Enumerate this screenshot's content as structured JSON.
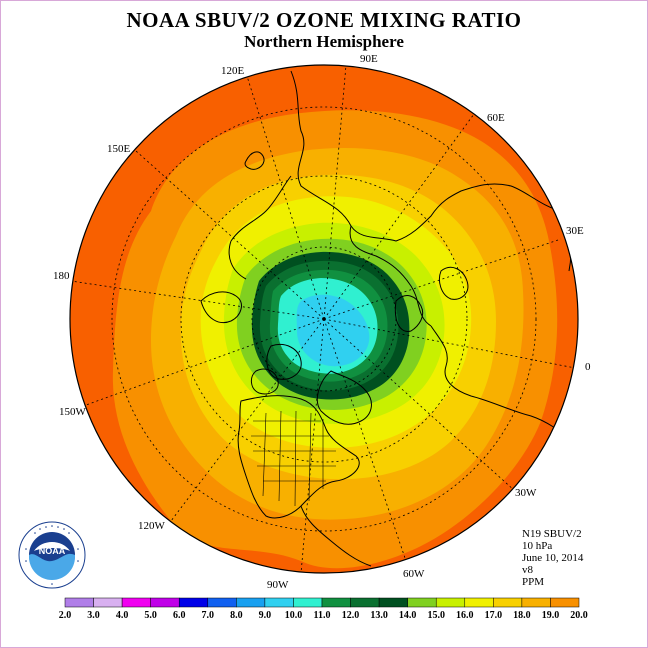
{
  "title": "NOAA SBUV/2 OZONE MIXING RATIO",
  "subtitle": "Northern Hemisphere",
  "longitude_labels": [
    "90E",
    "60E",
    "30E",
    "0",
    "30W",
    "60W",
    "90W",
    "120W",
    "150W",
    "180",
    "150E",
    "120E"
  ],
  "info": {
    "satellite": "N19 SBUV/2",
    "level": "10 hPa",
    "date": "June 10, 2014",
    "version": "v8",
    "units": "PPM"
  },
  "logo": {
    "text": "NOAA",
    "ring_text": "NATIONAL OCEANIC AND ATMOSPHERIC ADMINISTRATION · U.S. DEPARTMENT OF COMMERCE"
  },
  "colorbar": {
    "ticks": [
      "2.0",
      "3.0",
      "4.0",
      "5.0",
      "6.0",
      "7.0",
      "8.0",
      "9.0",
      "10.0",
      "11.0",
      "12.0",
      "13.0",
      "14.0",
      "15.0",
      "16.0",
      "17.0",
      "18.0",
      "19.0",
      "20.0"
    ],
    "colors": [
      "#b07ee8",
      "#d8b0f0",
      "#f000f0",
      "#c000e8",
      "#0000e8",
      "#1060f0",
      "#18a0f0",
      "#30d0f0",
      "#30f0d0",
      "#109040",
      "#0a7030",
      "#005020",
      "#80d020",
      "#c8f000",
      "#f0f000",
      "#f8d000",
      "#f8b000",
      "#f89000",
      "#f86000",
      "#f00000",
      "#8b5a3c"
    ]
  }
}
